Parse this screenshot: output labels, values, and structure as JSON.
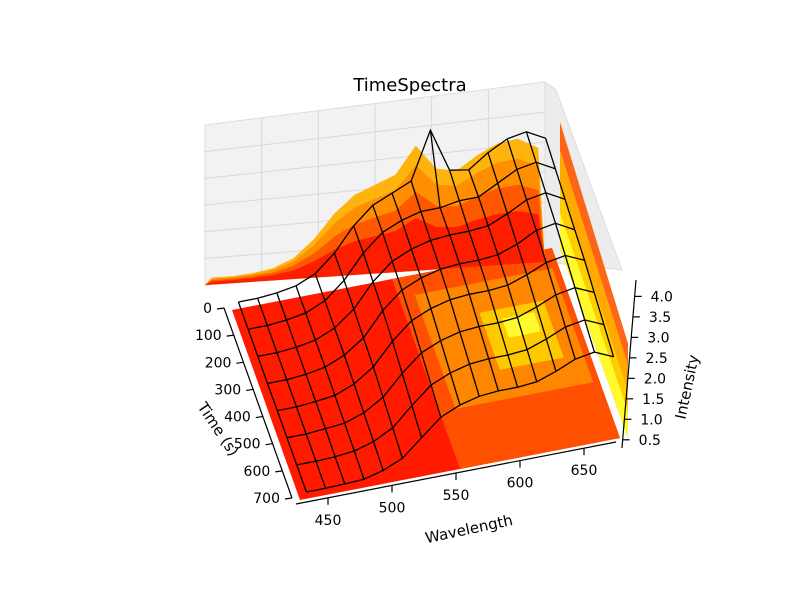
{
  "chart_data": {
    "type": "surface3d",
    "title": "TimeSpectra",
    "xlabel": "Wavelength",
    "ylabel": "Time (s)",
    "zlabel": "Intensity",
    "xlim": [
      425,
      675
    ],
    "ylim": [
      0,
      700
    ],
    "zlim": [
      0.3,
      4.4
    ],
    "x_ticks": [
      450,
      500,
      550,
      600,
      650
    ],
    "y_ticks": [
      0,
      100,
      200,
      300,
      400,
      500,
      600,
      700
    ],
    "z_ticks": [
      "0.5",
      "1.0",
      "1.5",
      "2.0",
      "2.5",
      "3.0",
      "3.5",
      "4.0"
    ],
    "grid": true,
    "colormap": [
      "#ff1a00",
      "#ff5500",
      "#ff8c00",
      "#ffb000",
      "#ffd000",
      "#ffff33"
    ],
    "wire_color": "#000000",
    "wavelengths": [
      430,
      445,
      460,
      475,
      490,
      505,
      520,
      535,
      550,
      565,
      580,
      595,
      610,
      625,
      640,
      655,
      670
    ],
    "times": [
      0,
      100,
      200,
      300,
      400,
      500,
      600,
      700
    ],
    "series": [
      {
        "time": 0,
        "intensity": [
          0.5,
          0.5,
          0.55,
          0.65,
          0.9,
          1.4,
          2.1,
          2.6,
          2.85,
          3.1,
          4.5,
          3.2,
          3.1,
          3.5,
          3.8,
          3.9,
          3.6
        ]
      },
      {
        "time": 100,
        "intensity": [
          0.5,
          0.5,
          0.55,
          0.65,
          0.9,
          1.4,
          2.1,
          2.6,
          2.85,
          3.0,
          3.0,
          3.1,
          3.1,
          3.4,
          3.7,
          3.8,
          3.5
        ]
      },
      {
        "time": 200,
        "intensity": [
          0.5,
          0.5,
          0.55,
          0.65,
          0.9,
          1.35,
          2.05,
          2.55,
          2.8,
          2.95,
          3.0,
          3.0,
          3.05,
          3.3,
          3.6,
          3.7,
          3.4
        ]
      },
      {
        "time": 300,
        "intensity": [
          0.5,
          0.5,
          0.55,
          0.65,
          0.9,
          1.3,
          2.0,
          2.5,
          2.75,
          2.9,
          2.95,
          2.95,
          3.0,
          3.2,
          3.5,
          3.6,
          3.3
        ]
      },
      {
        "time": 400,
        "intensity": [
          0.5,
          0.5,
          0.55,
          0.62,
          0.85,
          1.25,
          1.9,
          2.4,
          2.65,
          2.8,
          2.85,
          2.85,
          2.9,
          3.1,
          3.35,
          3.45,
          3.2
        ]
      },
      {
        "time": 500,
        "intensity": [
          0.5,
          0.5,
          0.55,
          0.6,
          0.8,
          1.15,
          1.75,
          2.25,
          2.5,
          2.65,
          2.7,
          2.7,
          2.75,
          2.95,
          3.2,
          3.3,
          3.05
        ]
      },
      {
        "time": 600,
        "intensity": [
          0.5,
          0.5,
          0.52,
          0.58,
          0.75,
          1.05,
          1.6,
          2.1,
          2.35,
          2.5,
          2.55,
          2.55,
          2.6,
          2.8,
          3.05,
          3.15,
          2.9
        ]
      },
      {
        "time": 700,
        "intensity": [
          0.5,
          0.5,
          0.52,
          0.55,
          0.7,
          0.95,
          1.45,
          1.95,
          2.2,
          2.35,
          2.4,
          2.4,
          2.45,
          2.65,
          2.9,
          3.0,
          2.75
        ]
      }
    ]
  }
}
